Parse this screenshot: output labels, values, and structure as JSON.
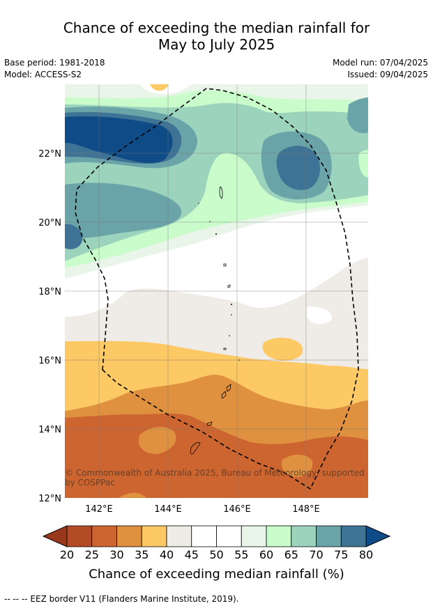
{
  "title_line1": "Chance of exceeding the median rainfall for",
  "title_line2": "May to July 2025",
  "base_period": "Base period: 1981-2018",
  "model": "Model: ACCESS-S2",
  "model_run": "Model run: 07/04/2025",
  "issued": "Issued: 09/04/2025",
  "lat_labels": [
    "22°N",
    "20°N",
    "18°N",
    "16°N",
    "14°N",
    "12°N"
  ],
  "lon_labels": [
    "142°E",
    "144°E",
    "146°E",
    "148°E"
  ],
  "copyright": "© Commonwealth of Australia 2025, Bureau of Meteorology, supported by COSPPac",
  "colorbar": {
    "title": "Chance of exceeding median rainfall (%)",
    "ticks": [
      "20",
      "25",
      "30",
      "35",
      "40",
      "45",
      "50",
      "55",
      "60",
      "65",
      "70",
      "75",
      "80"
    ],
    "colors": [
      "#b24b26",
      "#cc6530",
      "#e0913f",
      "#fdc964",
      "#efebe6",
      "#ffffff",
      "#ffffff",
      "#e8f5e8",
      "#c9fbcb",
      "#9bd3bd",
      "#6aa4a9",
      "#3f7395"
    ],
    "under_color": "#99391c",
    "over_color": "#0f4c87"
  },
  "footnote": "--  --  -- EEZ border V11 (Flanders Marine Institute, 2019)."
}
